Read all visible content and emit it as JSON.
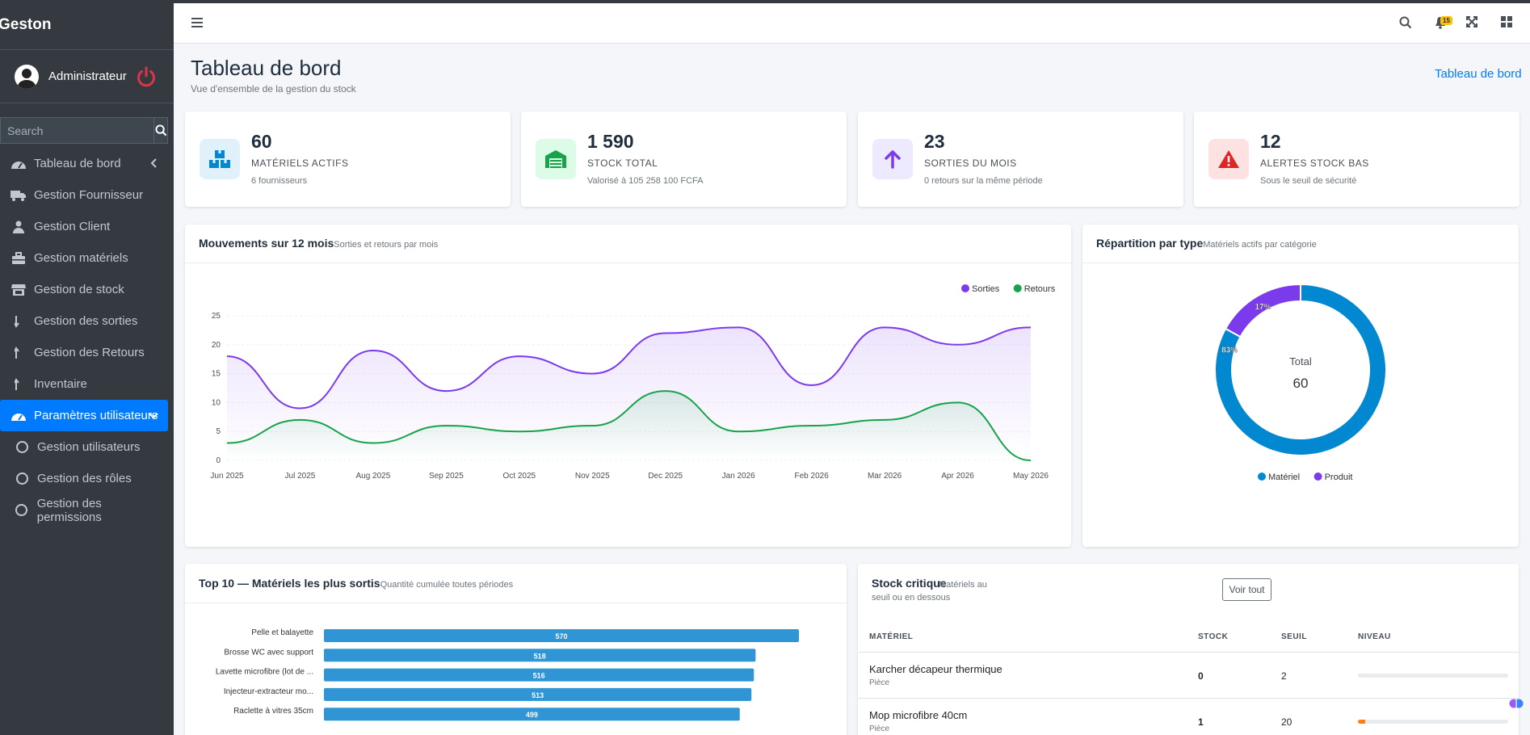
{
  "app": {
    "brand": "Geston"
  },
  "user": {
    "name": "Administrateur"
  },
  "search": {
    "placeholder": "Search"
  },
  "sidebar": {
    "items": [
      {
        "label": "Tableau de bord",
        "icon": "dashboard-icon"
      },
      {
        "label": "Gestion Fournisseur",
        "icon": "truck-icon"
      },
      {
        "label": "Gestion Client",
        "icon": "user-icon"
      },
      {
        "label": "Gestion matériels",
        "icon": "toolbox-icon"
      },
      {
        "label": "Gestion de stock",
        "icon": "store-icon"
      },
      {
        "label": "Gestion des sorties",
        "icon": "arrow-down-icon"
      },
      {
        "label": "Gestion des Retours",
        "icon": "arrow-up-icon"
      },
      {
        "label": "Inventaire",
        "icon": "arrow-up-icon"
      },
      {
        "label": "Paramètres utilisateurs",
        "icon": "dashboard-icon"
      },
      {
        "label": "Gestion utilisateurs",
        "icon": "circle-icon"
      },
      {
        "label": "Gestion des rôles",
        "icon": "circle-icon"
      },
      {
        "label": "Gestion des permissions",
        "icon": "circle-icon"
      }
    ]
  },
  "header": {
    "notifications_count": "15"
  },
  "page": {
    "title": "Tableau de bord",
    "subtitle": "Vue d'ensemble de la gestion du stock",
    "breadcrumb": "Tableau de bord"
  },
  "stats": [
    {
      "value": "60",
      "label": "MATÉRIELS ACTIFS",
      "note": "6 fournisseurs",
      "color": "#0288d1",
      "bg": "#e1f1fb"
    },
    {
      "value": "1 590",
      "label": "STOCK TOTAL",
      "note": "Valorisé à 105 258 100 FCFA",
      "color": "#16a34a",
      "bg": "#dcfce7"
    },
    {
      "value": "23",
      "label": "SORTIES DU MOIS",
      "note": "0 retours sur la même période",
      "color": "#7c3aed",
      "bg": "#ede9fe"
    },
    {
      "value": "12",
      "label": "ALERTES STOCK BAS",
      "note": "Sous le seuil de sécurité",
      "color": "#dc2626",
      "bg": "#fee2e2"
    }
  ],
  "movements": {
    "title": "Mouvements sur 12 mois",
    "subtitle": "Sorties et retours par mois",
    "chart_data": {
      "type": "area",
      "categories": [
        "Jun 2025",
        "Jul 2025",
        "Aug 2025",
        "Sep 2025",
        "Oct 2025",
        "Nov 2025",
        "Dec 2025",
        "Jan 2026",
        "Feb 2026",
        "Mar 2026",
        "Apr 2026",
        "May 2026"
      ],
      "series": [
        {
          "name": "Sorties",
          "color": "#7c3aed",
          "values": [
            18,
            9,
            19,
            12,
            18,
            15,
            22,
            23,
            13,
            23,
            20,
            23
          ]
        },
        {
          "name": "Retours",
          "color": "#16a34a",
          "values": [
            3,
            7,
            3,
            6,
            5,
            6,
            12,
            5,
            6,
            7,
            10,
            0
          ]
        }
      ],
      "yticks": [
        "0",
        "5",
        "10",
        "15",
        "20",
        "25"
      ],
      "ylim": [
        0,
        25
      ],
      "legend": "top-right"
    }
  },
  "repartition": {
    "title": "Répartition par type",
    "subtitle": "Matériels actifs par catégorie",
    "center_label": "Total",
    "center_value": "60",
    "chart_data": {
      "type": "pie",
      "categories": [
        "Matériel",
        "Produit"
      ],
      "values": [
        83,
        17
      ],
      "labels": [
        "83%",
        "17%"
      ],
      "colors": [
        "#0288d1",
        "#7c3aed"
      ],
      "legend": "bottom"
    }
  },
  "top10": {
    "title": "Top 10 — Matériels les plus sortis",
    "subtitle": "Quantité cumulée toutes périodes",
    "chart_data": {
      "type": "bar",
      "categories": [
        "Pelle et balayette",
        "Brosse WC avec support",
        "Lavette microfibre (lot de ...",
        "Injecteur-extracteur mo...",
        "Raclette à vitres 35cm"
      ],
      "values": [
        570,
        518,
        516,
        513,
        499
      ],
      "labels": [
        "570",
        "518",
        "516",
        "513",
        "499"
      ],
      "color": "#2f95d4"
    }
  },
  "critical": {
    "title": "Stock critique",
    "subtitle_line1": "Matériels au",
    "subtitle_line2": "seuil ou en dessous",
    "button": "Voir tout",
    "columns": [
      "MATÉRIEL",
      "STOCK",
      "SEUIL",
      "NIVEAU"
    ],
    "rows": [
      {
        "name": "Karcher décapeur thermique",
        "unit": "Pièce",
        "stock": "0",
        "seuil": "2",
        "level": 0
      },
      {
        "name": "Mop microfibre 40cm",
        "unit": "Pièce",
        "stock": "1",
        "seuil": "20",
        "level": 0.05
      }
    ]
  }
}
